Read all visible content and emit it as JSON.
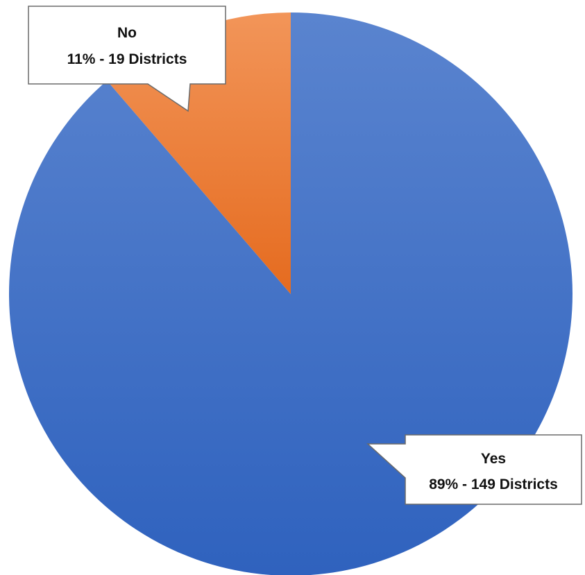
{
  "chart_data": {
    "type": "pie",
    "title": "",
    "slices": [
      {
        "label": "Yes",
        "percent_label": "89% - 149 Districts",
        "value": 149,
        "color": "#4472C4"
      },
      {
        "label": "No",
        "percent_label": "11% - 19 Districts",
        "value": 19,
        "color": "#ED7D31"
      }
    ],
    "legend": "none",
    "start": "top",
    "direction": "clockwise"
  }
}
